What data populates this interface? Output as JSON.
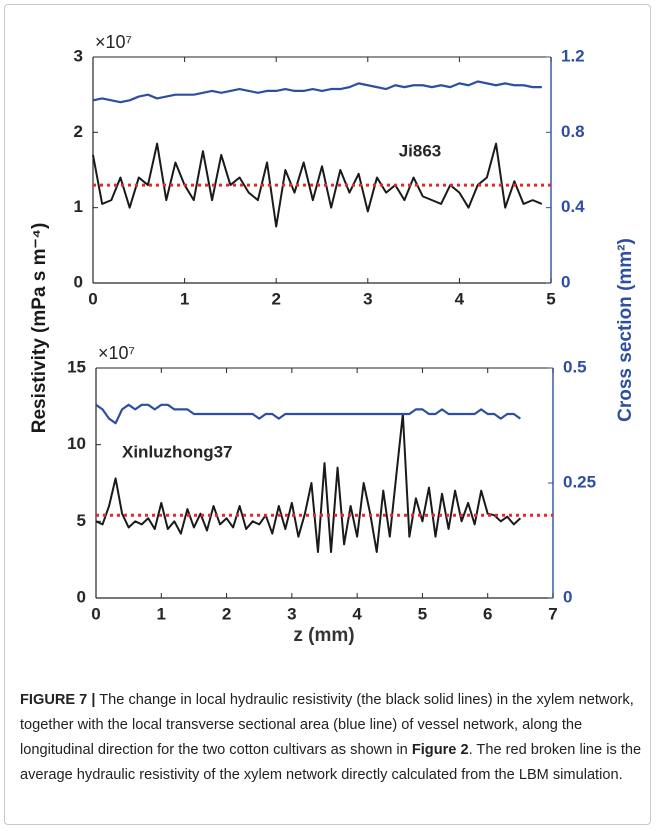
{
  "chart_data": [
    {
      "type": "line",
      "exponent_label": "×10⁷",
      "annotation": "Ji863",
      "x": [
        0,
        0.1,
        0.2,
        0.3,
        0.4,
        0.5,
        0.6,
        0.7,
        0.8,
        0.9,
        1,
        1.1,
        1.2,
        1.3,
        1.4,
        1.5,
        1.6,
        1.7,
        1.8,
        1.9,
        2,
        2.1,
        2.2,
        2.3,
        2.4,
        2.5,
        2.6,
        2.7,
        2.8,
        2.9,
        3,
        3.1,
        3.2,
        3.3,
        3.4,
        3.5,
        3.6,
        3.7,
        3.8,
        3.9,
        4,
        4.1,
        4.2,
        4.3,
        4.4,
        4.5,
        4.6,
        4.7,
        4.8,
        4.9
      ],
      "series": [
        {
          "color": "#1a1a1a",
          "values": [
            1.7,
            1.05,
            1.1,
            1.4,
            1.0,
            1.4,
            1.3,
            1.85,
            1.1,
            1.6,
            1.3,
            1.1,
            1.75,
            1.1,
            1.7,
            1.3,
            1.4,
            1.2,
            1.1,
            1.6,
            0.75,
            1.5,
            1.2,
            1.6,
            1.1,
            1.55,
            1.0,
            1.5,
            1.2,
            1.45,
            0.95,
            1.4,
            1.2,
            1.3,
            1.1,
            1.4,
            1.15,
            1.1,
            1.05,
            1.3,
            1.2,
            1.0,
            1.3,
            1.4,
            1.85,
            1.0,
            1.35,
            1.05,
            1.1,
            1.05
          ]
        },
        {
          "color": "#2e4fa0",
          "axis": "y2",
          "values": [
            0.97,
            0.98,
            0.97,
            0.96,
            0.97,
            0.99,
            1.0,
            0.98,
            0.99,
            1.0,
            1.0,
            1.0,
            1.01,
            1.02,
            1.01,
            1.02,
            1.03,
            1.02,
            1.01,
            1.02,
            1.02,
            1.03,
            1.02,
            1.02,
            1.03,
            1.02,
            1.03,
            1.03,
            1.04,
            1.06,
            1.05,
            1.04,
            1.03,
            1.05,
            1.04,
            1.05,
            1.05,
            1.04,
            1.05,
            1.04,
            1.06,
            1.05,
            1.07,
            1.06,
            1.05,
            1.06,
            1.05,
            1.05,
            1.04,
            1.04
          ]
        }
      ],
      "mean_line": {
        "value": 1.3,
        "color": "#e8262b"
      },
      "xlim": [
        0,
        5
      ],
      "xticks": [
        0,
        1,
        2,
        3,
        4,
        5
      ],
      "ylim": [
        0,
        3
      ],
      "yticks": [
        0,
        1,
        2,
        3
      ],
      "y2lim": [
        0,
        1.2
      ],
      "y2ticks": [
        0,
        0.4,
        0.8,
        1.2
      ]
    },
    {
      "type": "line",
      "exponent_label": "×10⁷",
      "annotation": "Xinluzhong37",
      "x": [
        0,
        0.1,
        0.2,
        0.3,
        0.4,
        0.5,
        0.6,
        0.7,
        0.8,
        0.9,
        1,
        1.1,
        1.2,
        1.3,
        1.4,
        1.5,
        1.6,
        1.7,
        1.8,
        1.9,
        2,
        2.1,
        2.2,
        2.3,
        2.4,
        2.5,
        2.6,
        2.7,
        2.8,
        2.9,
        3,
        3.1,
        3.2,
        3.3,
        3.4,
        3.5,
        3.6,
        3.7,
        3.8,
        3.9,
        4,
        4.1,
        4.2,
        4.3,
        4.4,
        4.5,
        4.6,
        4.7,
        4.8,
        4.9,
        5,
        5.1,
        5.2,
        5.3,
        5.4,
        5.5,
        5.6,
        5.7,
        5.8,
        5.9,
        6,
        6.1,
        6.2,
        6.3,
        6.4,
        6.5
      ],
      "series": [
        {
          "color": "#1a1a1a",
          "values": [
            5.0,
            4.8,
            6.0,
            7.8,
            5.5,
            4.6,
            5.0,
            4.8,
            5.2,
            4.5,
            6.2,
            4.5,
            5.0,
            4.2,
            5.8,
            4.6,
            5.5,
            4.4,
            6.0,
            4.8,
            5.2,
            4.6,
            6.0,
            4.5,
            5.0,
            4.8,
            5.4,
            4.2,
            6.0,
            4.5,
            6.2,
            4.0,
            5.5,
            7.5,
            3.0,
            8.8,
            3.0,
            8.5,
            3.5,
            6.0,
            4.0,
            7.5,
            5.5,
            3.0,
            7.0,
            4.0,
            8.0,
            12.0,
            4.0,
            6.5,
            5.0,
            7.2,
            4.0,
            6.8,
            4.5,
            7.0,
            5.0,
            6.2,
            4.8,
            7.0,
            5.5,
            5.4,
            5.0,
            5.3,
            4.8,
            5.2
          ]
        },
        {
          "color": "#2e4fa0",
          "axis": "y2",
          "values": [
            0.42,
            0.41,
            0.39,
            0.38,
            0.41,
            0.42,
            0.41,
            0.42,
            0.42,
            0.41,
            0.42,
            0.42,
            0.41,
            0.41,
            0.41,
            0.4,
            0.4,
            0.4,
            0.4,
            0.4,
            0.4,
            0.4,
            0.4,
            0.4,
            0.4,
            0.39,
            0.4,
            0.4,
            0.39,
            0.4,
            0.4,
            0.4,
            0.4,
            0.4,
            0.4,
            0.4,
            0.4,
            0.4,
            0.4,
            0.4,
            0.4,
            0.4,
            0.4,
            0.4,
            0.4,
            0.4,
            0.4,
            0.4,
            0.4,
            0.41,
            0.41,
            0.4,
            0.4,
            0.41,
            0.4,
            0.4,
            0.4,
            0.4,
            0.4,
            0.41,
            0.4,
            0.4,
            0.39,
            0.4,
            0.4,
            0.39
          ]
        }
      ],
      "mean_line": {
        "value": 5.4,
        "color": "#e8262b"
      },
      "xlim": [
        0,
        7
      ],
      "xticks": [
        0,
        1,
        2,
        3,
        4,
        5,
        6,
        7
      ],
      "ylim": [
        0,
        15
      ],
      "yticks": [
        0,
        5,
        10,
        15
      ],
      "y2lim": [
        0,
        0.5
      ],
      "y2ticks": [
        0,
        0.25,
        0.5
      ]
    }
  ],
  "ylabel": "Resistivity (mPa s m⁻⁴)",
  "y2label": "Cross section (mm²)",
  "xlabel": "z (mm)",
  "caption": {
    "label": "FIGURE 7 |",
    "text1": " The change in local hydraulic resistivity (the black solid lines) in the xylem network, together with the local transverse sectional area (blue line) of vessel network, along the longitudinal direction for the two cotton cultivars as shown in ",
    "ref": "Figure 2",
    "text2": ". The red broken line is the average hydraulic resistivity of the xylem network directly calculated from the LBM simulation."
  }
}
